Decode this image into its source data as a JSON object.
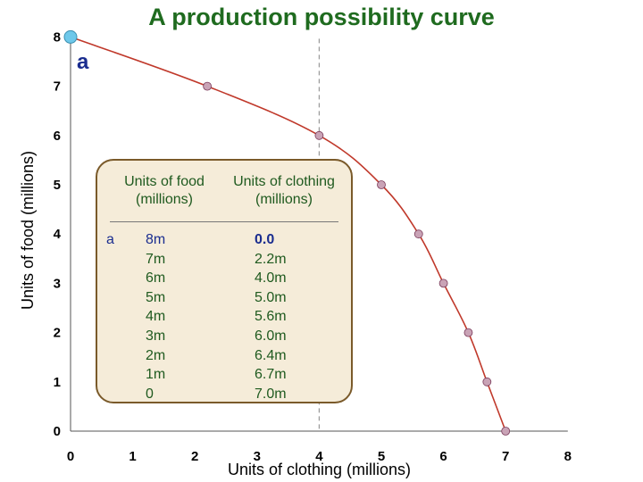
{
  "chart_data": {
    "type": "line",
    "title": "A production possibility curve",
    "xlabel": "Units of clothing (millions)",
    "ylabel": "Units of food (millions)",
    "xlim": [
      0,
      8
    ],
    "ylim": [
      0,
      8
    ],
    "x_ticks": [
      "0",
      "1",
      "2",
      "3",
      "4",
      "5",
      "6",
      "7",
      "8"
    ],
    "y_ticks": [
      "0",
      "1",
      "2",
      "3",
      "4",
      "5",
      "6",
      "7",
      "8"
    ],
    "series": [
      {
        "x": [
          0.0,
          2.2,
          4.0,
          5.0,
          5.6,
          6.0,
          6.4,
          6.7,
          7.0
        ],
        "y": [
          8,
          7,
          6,
          5,
          4,
          3,
          2,
          1,
          0
        ],
        "color": "#c0392b",
        "marker_color": "#c9a3b6"
      }
    ],
    "highlight_point": {
      "x": 0.0,
      "y": 8,
      "label": "a",
      "color": "#6ec8ea"
    },
    "reference_line": {
      "x": 4,
      "style": "dashed",
      "color": "#999999"
    },
    "grid": false,
    "table": {
      "header_food": [
        "Units of food",
        "(millions)"
      ],
      "header_clothing": [
        "Units of clothing",
        "(millions)"
      ],
      "key": [
        "a"
      ],
      "food": [
        "8m",
        "7m",
        "6m",
        "5m",
        "4m",
        "3m",
        "2m",
        "1m",
        "0"
      ],
      "clothing": [
        "0.0",
        "2.2m",
        "4.0m",
        "5.0m",
        "5.6m",
        "6.0m",
        "6.4m",
        "6.7m",
        "7.0m"
      ]
    }
  }
}
